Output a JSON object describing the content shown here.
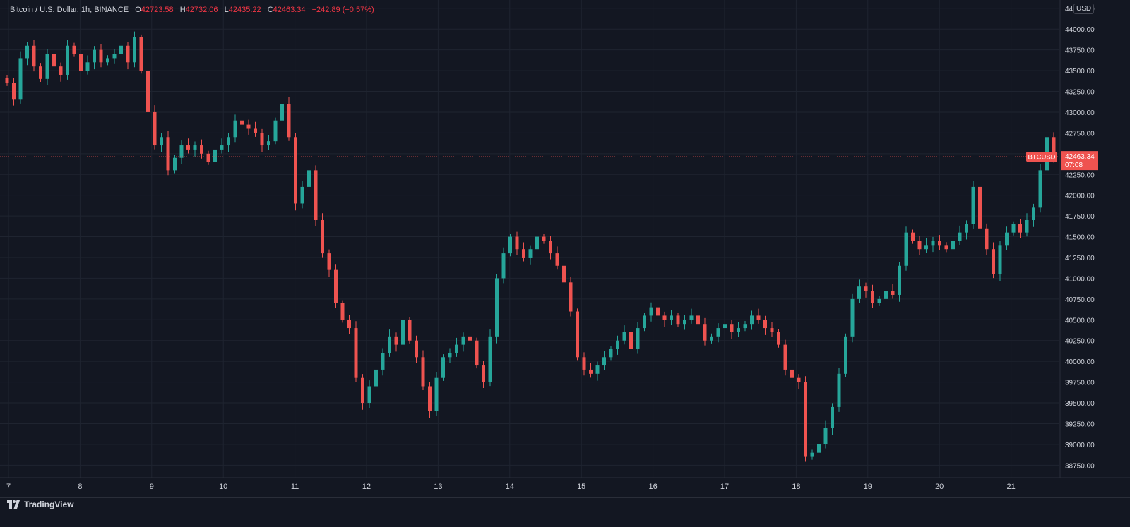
{
  "header": {
    "symbol_desc": "Bitcoin / U.S. Dollar, 1h, BINANCE",
    "o_label": "O",
    "o_value": "42723.58",
    "h_label": "H",
    "h_value": "42732.06",
    "l_label": "L",
    "l_value": "42435.22",
    "c_label": "C",
    "c_value": "42463.34",
    "change": "−242.89 (−0.57%)"
  },
  "currency_unit": "USD",
  "price_label": {
    "symbol": "BTCUSD",
    "price": "42463.34",
    "countdown": "07:08"
  },
  "brand": "TradingView",
  "colors": {
    "background": "#131722",
    "grid": "#1f2430",
    "up": "#26a69a",
    "down": "#ef5350",
    "text": "#d1d4dc",
    "price_line": "#ef5350"
  },
  "chart_data": {
    "type": "candlestick",
    "title": "",
    "ylim": [
      38600,
      44350
    ],
    "y_ticks": [
      38750,
      39000,
      39250,
      39500,
      39750,
      40000,
      40250,
      40500,
      40750,
      41000,
      41250,
      41500,
      41750,
      42000,
      42250,
      42500,
      42750,
      43000,
      43250,
      43500,
      43750,
      44000,
      44250
    ],
    "y_tick_labels": [
      "38750.00",
      "39000.00",
      "39250.00",
      "39500.00",
      "39750.00",
      "40000.00",
      "40250.00",
      "40500.00",
      "40750.00",
      "41000.00",
      "41250.00",
      "41500.00",
      "41750.00",
      "42000.00",
      "42250.00",
      "42500.00",
      "42750.00",
      "43000.00",
      "43250.00",
      "43500.00",
      "43750.00",
      "44000.00",
      "44250.00"
    ],
    "x_tick_labels": [
      "7",
      "8",
      "9",
      "10",
      "11",
      "12",
      "13",
      "14",
      "15",
      "16",
      "17",
      "18",
      "19",
      "20",
      "21"
    ],
    "last_price": 42463.34,
    "close_series": [
      43350,
      43150,
      43650,
      43800,
      43550,
      43400,
      43700,
      43550,
      43450,
      43800,
      43700,
      43500,
      43600,
      43750,
      43600,
      43650,
      43700,
      43800,
      43600,
      43900,
      43500,
      43000,
      42600,
      42700,
      42300,
      42450,
      42600,
      42550,
      42600,
      42500,
      42400,
      42550,
      42600,
      42700,
      42900,
      42850,
      42800,
      42750,
      42600,
      42650,
      42900,
      43100,
      42700,
      41900,
      42100,
      42300,
      41700,
      41300,
      41100,
      40700,
      40500,
      40400,
      39800,
      39500,
      39700,
      39900,
      40100,
      40300,
      40200,
      40500,
      40250,
      40050,
      39700,
      39400,
      39800,
      40050,
      40100,
      40200,
      40300,
      40250,
      39950,
      39750,
      40300,
      41000,
      41300,
      41500,
      41350,
      41250,
      41350,
      41500,
      41450,
      41300,
      41150,
      40950,
      40600,
      40050,
      39900,
      39850,
      39950,
      40050,
      40150,
      40250,
      40350,
      40150,
      40400,
      40550,
      40650,
      40550,
      40500,
      40550,
      40450,
      40500,
      40550,
      40450,
      40250,
      40300,
      40400,
      40450,
      40350,
      40400,
      40450,
      40550,
      40500,
      40400,
      40350,
      40200,
      39900,
      39800,
      39750,
      38850,
      38900,
      39000,
      39200,
      39450,
      39850,
      40300,
      40750,
      40900,
      40850,
      40700,
      40750,
      40850,
      40800,
      41150,
      41550,
      41450,
      41350,
      41400,
      41450,
      41400,
      41350,
      41450,
      41550,
      41650,
      42100,
      41600,
      41350,
      41050,
      41400,
      41550,
      41650,
      41550,
      41700,
      41850,
      42300,
      42700,
      42463.34
    ]
  }
}
